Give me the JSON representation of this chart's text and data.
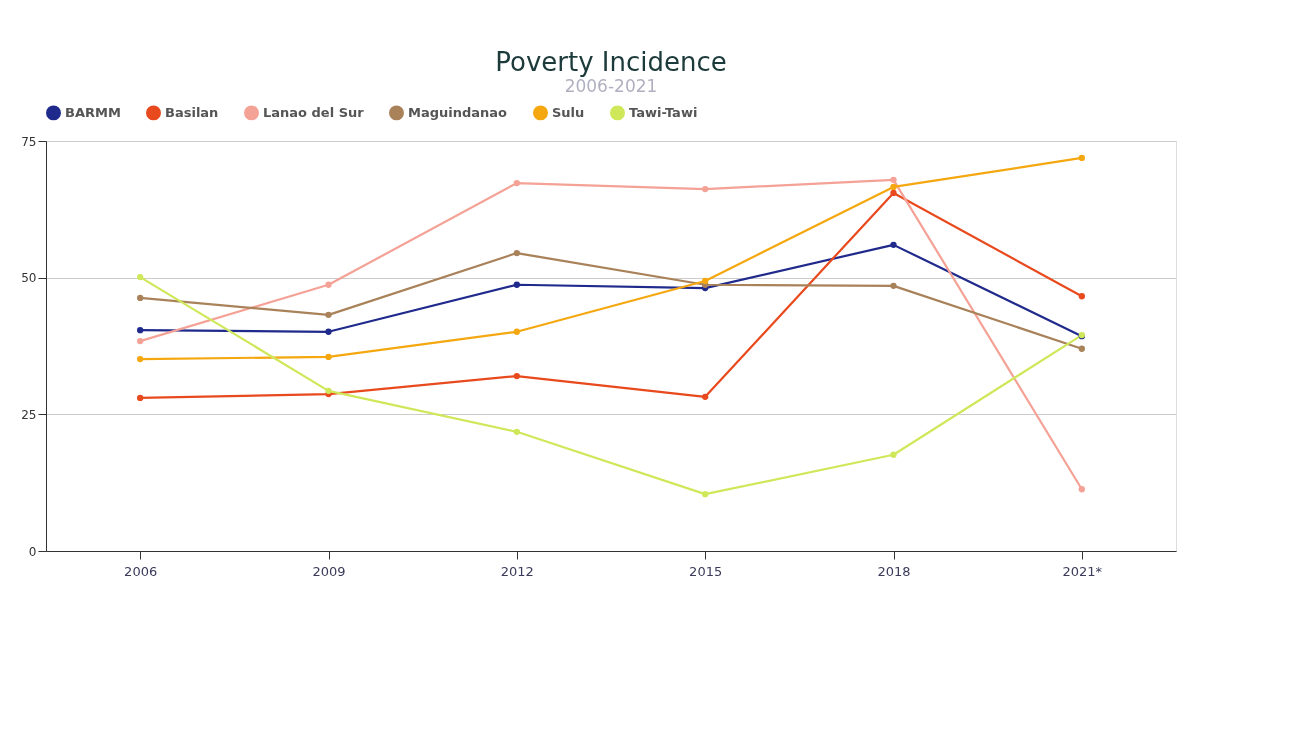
{
  "chart_data": {
    "type": "line",
    "title": "Poverty Incidence",
    "subtitle": "2006-2021",
    "categories": [
      "2006",
      "2009",
      "2012",
      "2015",
      "2018",
      "2021*"
    ],
    "series": [
      {
        "name": "BARMM",
        "color": "#1f2a8c",
        "values": [
          40.4,
          40.1,
          48.7,
          48.1,
          56.0,
          39.3
        ]
      },
      {
        "name": "Basilan",
        "color": "#e8491d",
        "values": [
          28.0,
          28.7,
          32.0,
          28.2,
          65.5,
          46.6
        ]
      },
      {
        "name": "Lanao del Sur",
        "color": "#f4a196",
        "values": [
          38.4,
          48.7,
          67.3,
          66.2,
          67.9,
          11.3
        ]
      },
      {
        "name": "Maguindanao",
        "color": "#a9825a",
        "values": [
          46.3,
          43.2,
          54.5,
          48.7,
          48.5,
          37.0
        ]
      },
      {
        "name": "Sulu",
        "color": "#f5a70f",
        "values": [
          35.1,
          35.5,
          40.1,
          49.4,
          66.6,
          71.9
        ]
      },
      {
        "name": "Tawi-Tawi",
        "color": "#cfe85a",
        "values": [
          50.1,
          29.3,
          21.8,
          10.4,
          17.6,
          39.5
        ]
      }
    ],
    "ylim": [
      0,
      75
    ],
    "yticks": [
      0,
      25,
      50,
      75
    ],
    "grid": "y",
    "legend": "top",
    "marker": "circle",
    "line_style": "solid"
  }
}
